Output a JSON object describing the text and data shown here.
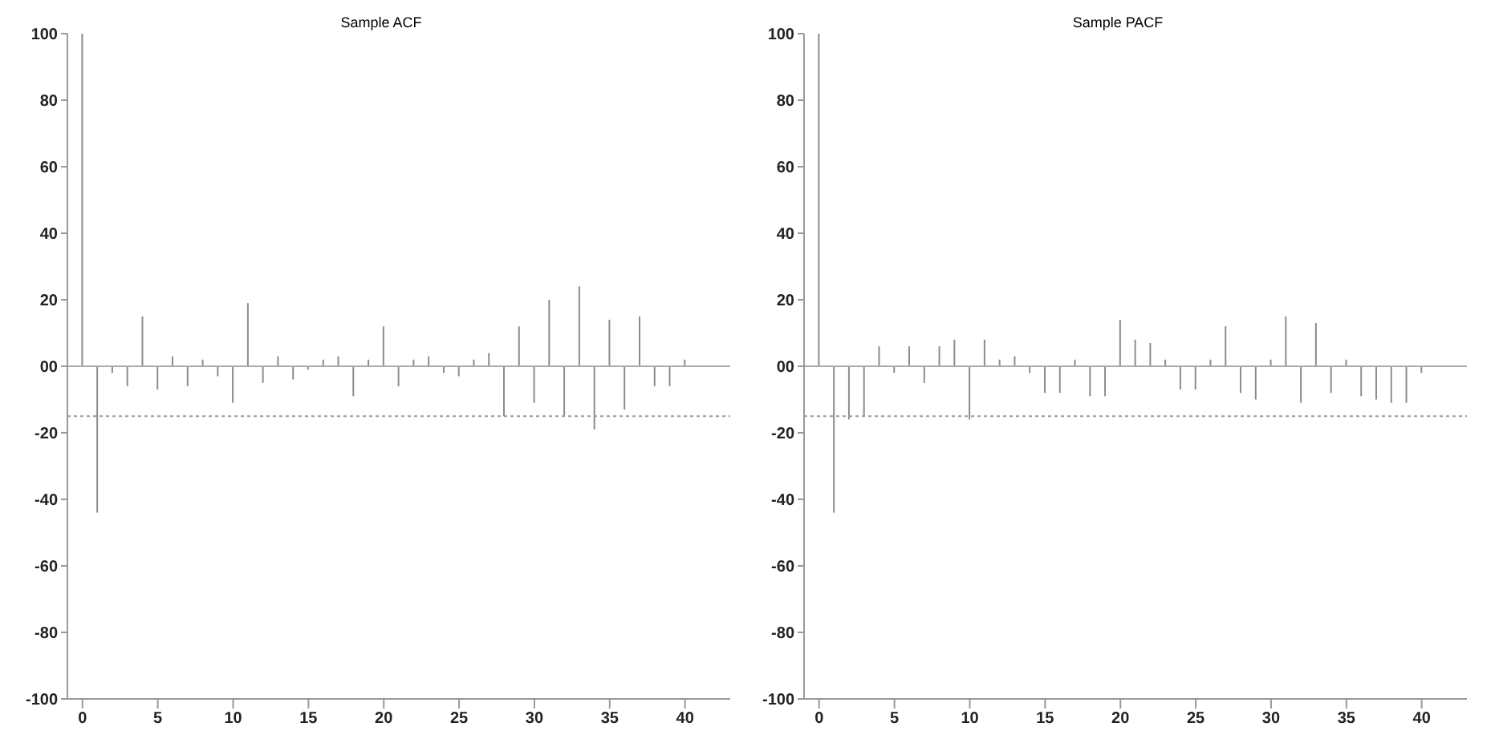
{
  "chart_data": [
    {
      "type": "bar",
      "title": "Sample ACF",
      "x": [
        0,
        1,
        2,
        3,
        4,
        5,
        6,
        7,
        8,
        9,
        10,
        11,
        12,
        13,
        14,
        15,
        16,
        17,
        18,
        19,
        20,
        21,
        22,
        23,
        24,
        25,
        26,
        27,
        28,
        29,
        30,
        31,
        32,
        33,
        34,
        35,
        36,
        37,
        38,
        39,
        40
      ],
      "values": [
        100,
        -44,
        -2,
        -6,
        15,
        -7,
        3,
        -6,
        2,
        -3,
        -11,
        19,
        -5,
        3,
        -4,
        -1,
        2,
        3,
        -9,
        2,
        12,
        -6,
        2,
        3,
        -2,
        -3,
        2,
        4,
        -15,
        12,
        -11,
        20,
        -15,
        24,
        -19,
        14,
        -13,
        15,
        -6,
        -6,
        2
      ],
      "color": "#8c8c8c",
      "xlim": [
        -1,
        43
      ],
      "xticks": [
        0,
        5,
        10,
        15,
        20,
        25,
        30,
        35,
        40
      ],
      "ylim": [
        -100,
        100
      ],
      "yticks": [
        100,
        80,
        60,
        40,
        20,
        {
          "value": 0,
          "label": "00"
        },
        -20,
        -40,
        -60,
        -80,
        -100
      ],
      "ref_lines": [
        {
          "axis": "y",
          "value": 0,
          "color": "#aaaaaa",
          "line_style": "solid"
        },
        {
          "axis": "y",
          "value": -15,
          "color": "#9a9a9a",
          "line_style": "dotted"
        }
      ],
      "legend": false
    },
    {
      "type": "bar",
      "title": "Sample PACF",
      "x": [
        0,
        1,
        2,
        3,
        4,
        5,
        6,
        7,
        8,
        9,
        10,
        11,
        12,
        13,
        14,
        15,
        16,
        17,
        18,
        19,
        20,
        21,
        22,
        23,
        24,
        25,
        26,
        27,
        28,
        29,
        30,
        31,
        32,
        33,
        34,
        35,
        36,
        37,
        38,
        39,
        40
      ],
      "values": [
        100,
        -44,
        -16,
        -15,
        6,
        -2,
        6,
        -5,
        6,
        8,
        -16,
        8,
        2,
        3,
        -2,
        -8,
        -8,
        2,
        -9,
        -9,
        14,
        8,
        7,
        2,
        -7,
        -7,
        2,
        12,
        -8,
        -10,
        2,
        15,
        -11,
        13,
        -8,
        2,
        -9,
        -10,
        -11,
        -11,
        -2
      ],
      "color": "#8c8c8c",
      "xlim": [
        -1,
        43
      ],
      "xticks": [
        0,
        5,
        10,
        15,
        20,
        25,
        30,
        35,
        40
      ],
      "ylim": [
        -100,
        100
      ],
      "yticks": [
        100,
        80,
        60,
        40,
        20,
        {
          "value": 0,
          "label": "00"
        },
        -20,
        -40,
        -60,
        -80,
        -100
      ],
      "ref_lines": [
        {
          "axis": "y",
          "value": 0,
          "color": "#aaaaaa",
          "line_style": "solid"
        },
        {
          "axis": "y",
          "value": -15,
          "color": "#9a9a9a",
          "line_style": "dotted"
        }
      ],
      "legend": false
    }
  ]
}
